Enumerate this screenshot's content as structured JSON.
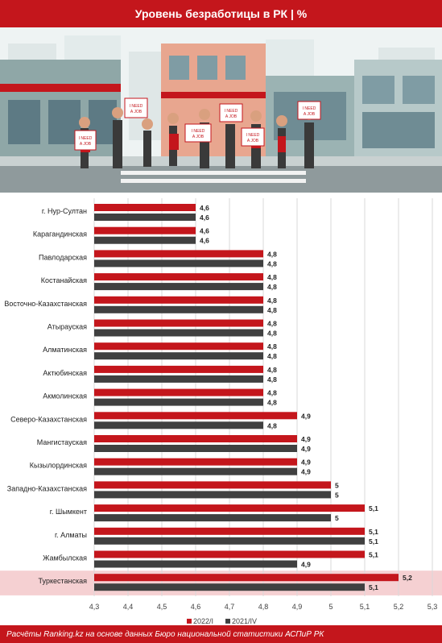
{
  "header": {
    "title": "Уровень безработицы в РК | %"
  },
  "illustration": {
    "sign_text_1": "I NEED",
    "sign_text_2": "A JOB"
  },
  "colors": {
    "series_2022": "#c4161c",
    "series_2021": "#404040",
    "highlight": "#f5d0d2",
    "brand": "#c4161c"
  },
  "chart_data": {
    "type": "bar",
    "orientation": "horizontal",
    "title": "Уровень безработицы в РК | %",
    "xlim": [
      4.3,
      5.3
    ],
    "x_ticks": [
      "4,3",
      "4,4",
      "4,5",
      "4,6",
      "4,7",
      "4,8",
      "4,9",
      "5",
      "5,1",
      "5,2",
      "5,3"
    ],
    "grid": true,
    "legend_position": "bottom-center",
    "highlighted_category": "Туркестанская",
    "categories": [
      "г. Нур-Султан",
      "Карагандинская",
      "Павлодарская",
      "Костанайская",
      "Восточно-Казахстанская",
      "Атырауская",
      "Алматинская",
      "Актюбинская",
      "Акмолинская",
      "Северо-Казахстанская",
      "Мангистауская",
      "Кызылординская",
      "Западно-Казахстанская",
      "г. Шымкент",
      "г. Алматы",
      "Жамбылская",
      "Туркестанская"
    ],
    "series": [
      {
        "name": "2022/I",
        "values": [
          4.6,
          4.6,
          4.8,
          4.8,
          4.8,
          4.8,
          4.8,
          4.8,
          4.8,
          4.9,
          4.9,
          4.9,
          5.0,
          5.1,
          5.1,
          5.1,
          5.2
        ],
        "labels": [
          "4,6",
          "4,6",
          "4,8",
          "4,8",
          "4,8",
          "4,8",
          "4,8",
          "4,8",
          "4,8",
          "4,9",
          "4,9",
          "4,9",
          "5",
          "5,1",
          "5,1",
          "5,1",
          "5,2"
        ]
      },
      {
        "name": "2021/IV",
        "values": [
          4.6,
          4.6,
          4.8,
          4.8,
          4.8,
          4.8,
          4.8,
          4.8,
          4.8,
          4.8,
          4.9,
          4.9,
          5.0,
          5.0,
          5.1,
          4.9,
          5.1
        ],
        "labels": [
          "4,6",
          "4,6",
          "4,8",
          "4,8",
          "4,8",
          "4,8",
          "4,8",
          "4,8",
          "4,8",
          "4,8",
          "4,9",
          "4,9",
          "5",
          "5",
          "5,1",
          "4,9",
          "5,1"
        ]
      }
    ]
  },
  "footer": {
    "source": "Расчёты Ranking.kz на основе данных Бюро национальной статистики АСПиР РК"
  }
}
